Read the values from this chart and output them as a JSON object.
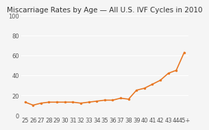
{
  "title": "Miscarriage Rates by Age — All U.S. IVF Cycles in 2010",
  "x_labels": [
    "25",
    "26",
    "27",
    "28",
    "29",
    "30",
    "31",
    "32",
    "33",
    "34",
    "35",
    "36",
    "37",
    "38",
    "39",
    "40",
    "41",
    "42",
    "43",
    "44",
    "45+"
  ],
  "y_values": [
    13,
    10,
    12,
    13,
    13,
    13,
    13,
    12,
    13,
    14,
    15,
    15,
    17,
    16,
    25,
    27,
    31,
    35,
    42,
    45,
    63
  ],
  "line_color": "#E87722",
  "marker_color": "#E87722",
  "background_color": "#f5f5f5",
  "ylim": [
    0,
    100
  ],
  "yticks": [
    0,
    20,
    40,
    60,
    80,
    100
  ],
  "title_fontsize": 7.5,
  "tick_fontsize": 6,
  "grid_color": "#ffffff"
}
